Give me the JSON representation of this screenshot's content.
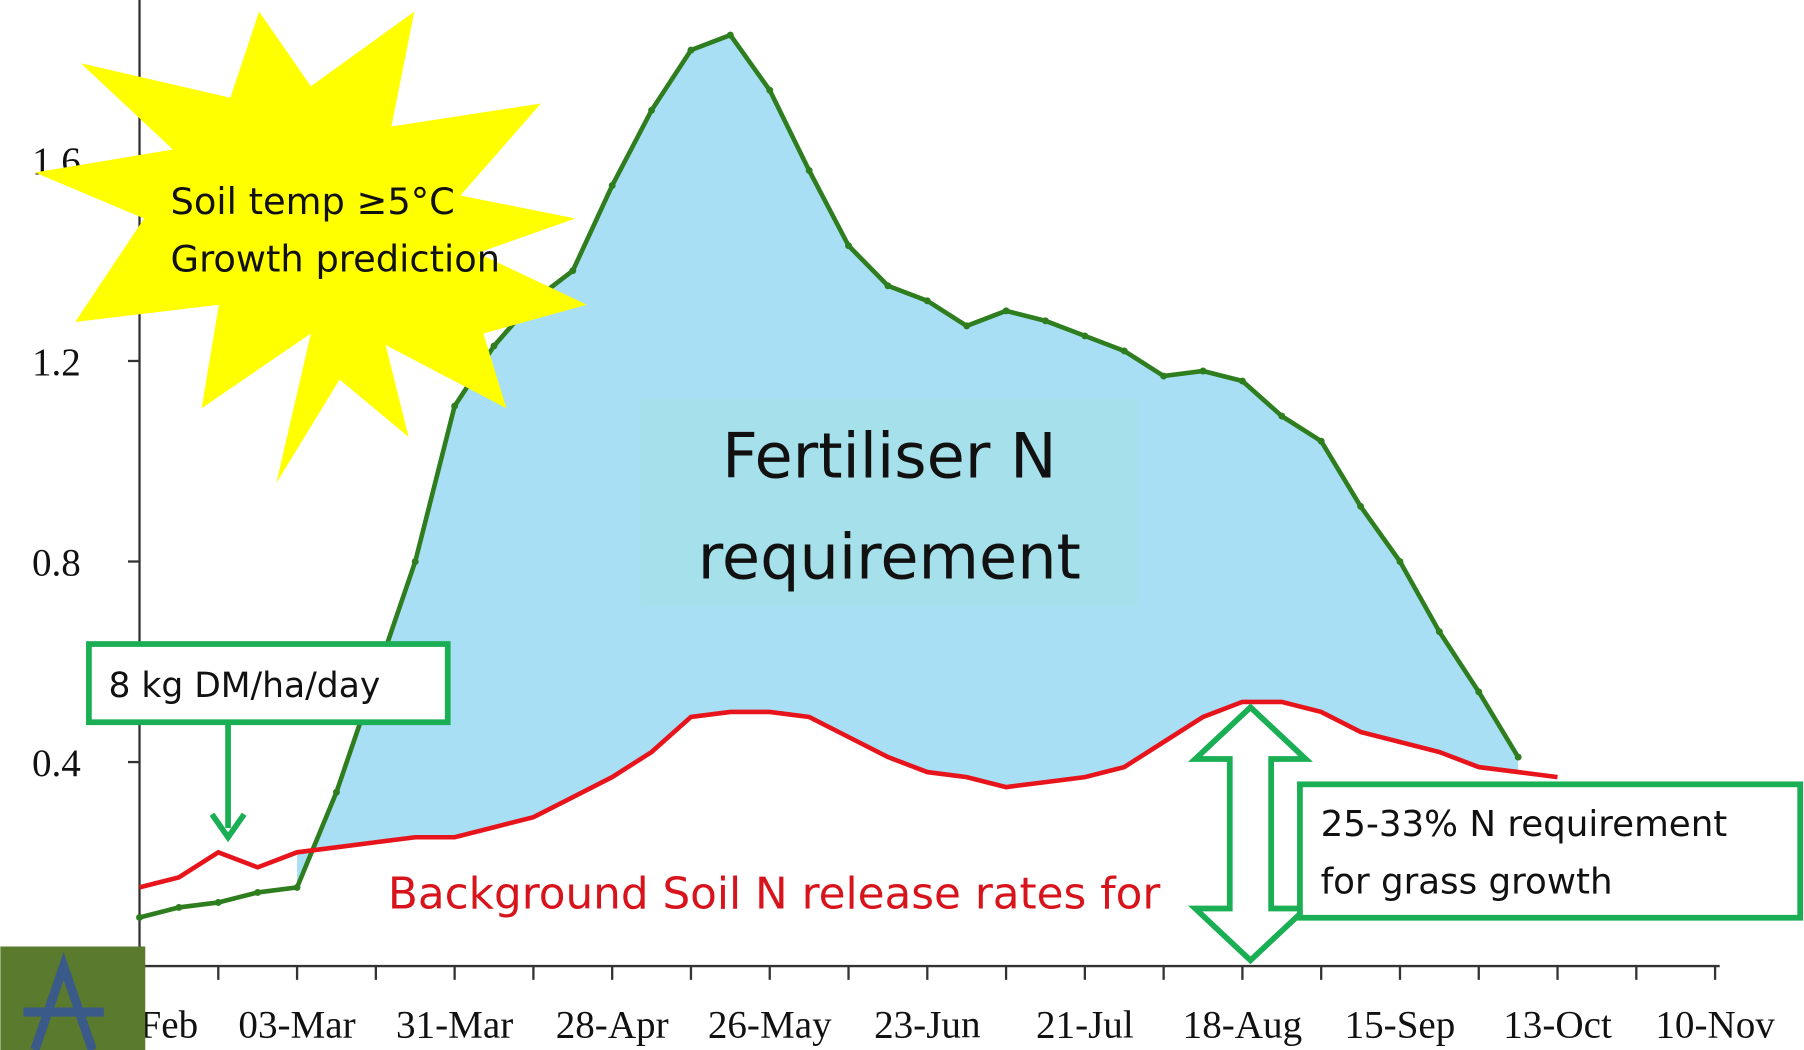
{
  "chart_data": {
    "type": "line",
    "categories": [
      "Feb",
      null,
      null,
      null,
      "03-Mar",
      null,
      null,
      null,
      "31-Mar",
      null,
      null,
      null,
      "28-Apr",
      null,
      null,
      null,
      "26-May",
      null,
      null,
      null,
      "23-Jun",
      null,
      null,
      null,
      "21-Jul",
      null,
      null,
      null,
      "18-Aug",
      null,
      null,
      null,
      "15-Sep",
      null,
      null,
      null,
      "13-Oct",
      null,
      null,
      null,
      "10-Nov"
    ],
    "series": [
      {
        "color": "#2e7d1e",
        "values": [
          0.09,
          0.11,
          0.12,
          0.14,
          0.15,
          0.34,
          0.57,
          0.8,
          1.11,
          1.23,
          1.32,
          1.38,
          1.55,
          1.7,
          1.82,
          1.85,
          1.74,
          1.58,
          1.43,
          1.35,
          1.32,
          1.27,
          1.3,
          1.28,
          1.25,
          1.22,
          1.17,
          1.18,
          1.16,
          1.09,
          1.04,
          0.91,
          0.8,
          0.66,
          0.54,
          0.41,
          null,
          null,
          null,
          null,
          null
        ]
      },
      {
        "color": "#e8141c",
        "values": [
          0.15,
          0.17,
          0.22,
          0.19,
          0.22,
          0.23,
          0.24,
          0.25,
          0.25,
          0.27,
          0.29,
          0.33,
          0.37,
          0.42,
          0.49,
          0.5,
          0.5,
          0.49,
          0.45,
          0.41,
          0.38,
          0.37,
          0.35,
          0.36,
          0.37,
          0.39,
          0.44,
          0.49,
          0.52,
          0.52,
          0.5,
          0.46,
          0.44,
          0.42,
          0.39,
          0.38,
          0.37,
          null,
          null,
          null,
          null
        ]
      }
    ],
    "fill_color": "#a8dff5",
    "ylim": [
      0,
      1.92
    ],
    "yticks": [
      0.4,
      0.8,
      1.2,
      1.6
    ],
    "annotations": [
      "Soil temp ≥5°C",
      "Growth prediction",
      "Fertiliser N",
      "requirement",
      "8 kg DM/ha/day",
      "Background Soil N release rates for",
      "25-33% N requirement",
      "for grass growth"
    ]
  }
}
